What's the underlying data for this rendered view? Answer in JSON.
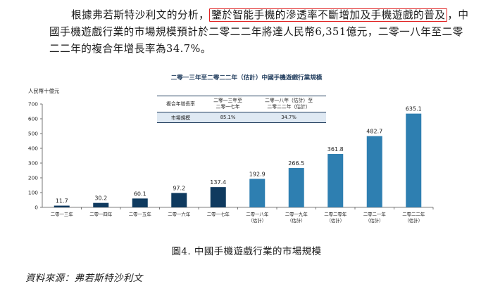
{
  "paragraph": {
    "line1_pre": "根據弗若斯特沙利文的分析，",
    "line1_highlight": "鑒於智能手機的滲透率不斷增加及手機遊戲的普及",
    "line1_post": "，中",
    "line2": "國手機遊戲行業的市場規模預計於二零二二年將達人民幣6,351億元，二零一八年至二零",
    "line3": "二二年的複合年增長率為34.7%。"
  },
  "chart_data": {
    "type": "bar",
    "title": "二零一三年至二零二二年（估計）中國手機遊戲行業規模",
    "ylabel": "人民幣十億元",
    "ylim": [
      0,
      700
    ],
    "yticks": [
      "0",
      "100",
      "200",
      "300",
      "400",
      "500",
      "600",
      "700"
    ],
    "grid": false,
    "categories": [
      "二零一三年",
      "二零一四年",
      "二零一五年",
      "二零一六年",
      "二零一七年",
      "二零一八年\n（估計）",
      "二零一九年\n（估計）",
      "二零二零年\n（估計）",
      "二零二一年\n（估計）",
      "二零二二年\n（估計）"
    ],
    "values": [
      11.7,
      30.2,
      60.1,
      97.2,
      137.4,
      192.9,
      266.5,
      361.8,
      482.7,
      635.1
    ],
    "value_labels": [
      "11.7",
      "30.2",
      "60.1",
      "97.2",
      "137.4",
      "192.9",
      "266.5",
      "361.8",
      "482.7",
      "635.1"
    ],
    "colors": {
      "historical": "#0f3a5f",
      "estimated": "#2e7fb1",
      "axis": "#555555",
      "table_rule": "#1f3b5c",
      "table_fill": "#dfe9f3"
    },
    "table": {
      "headers": [
        "複合年增長率",
        "二零一三年至\n二零一七年",
        "二零一八年（估計）至\n二零二二年（估計）"
      ],
      "row_label": "市場規模",
      "row_values": [
        "85.1%",
        "34.7%"
      ]
    }
  },
  "caption": "圖4. 中國手機遊戲行業的市場規模",
  "source": "資料來源：弗若斯特沙利文",
  "highlight_color": "#e02424"
}
